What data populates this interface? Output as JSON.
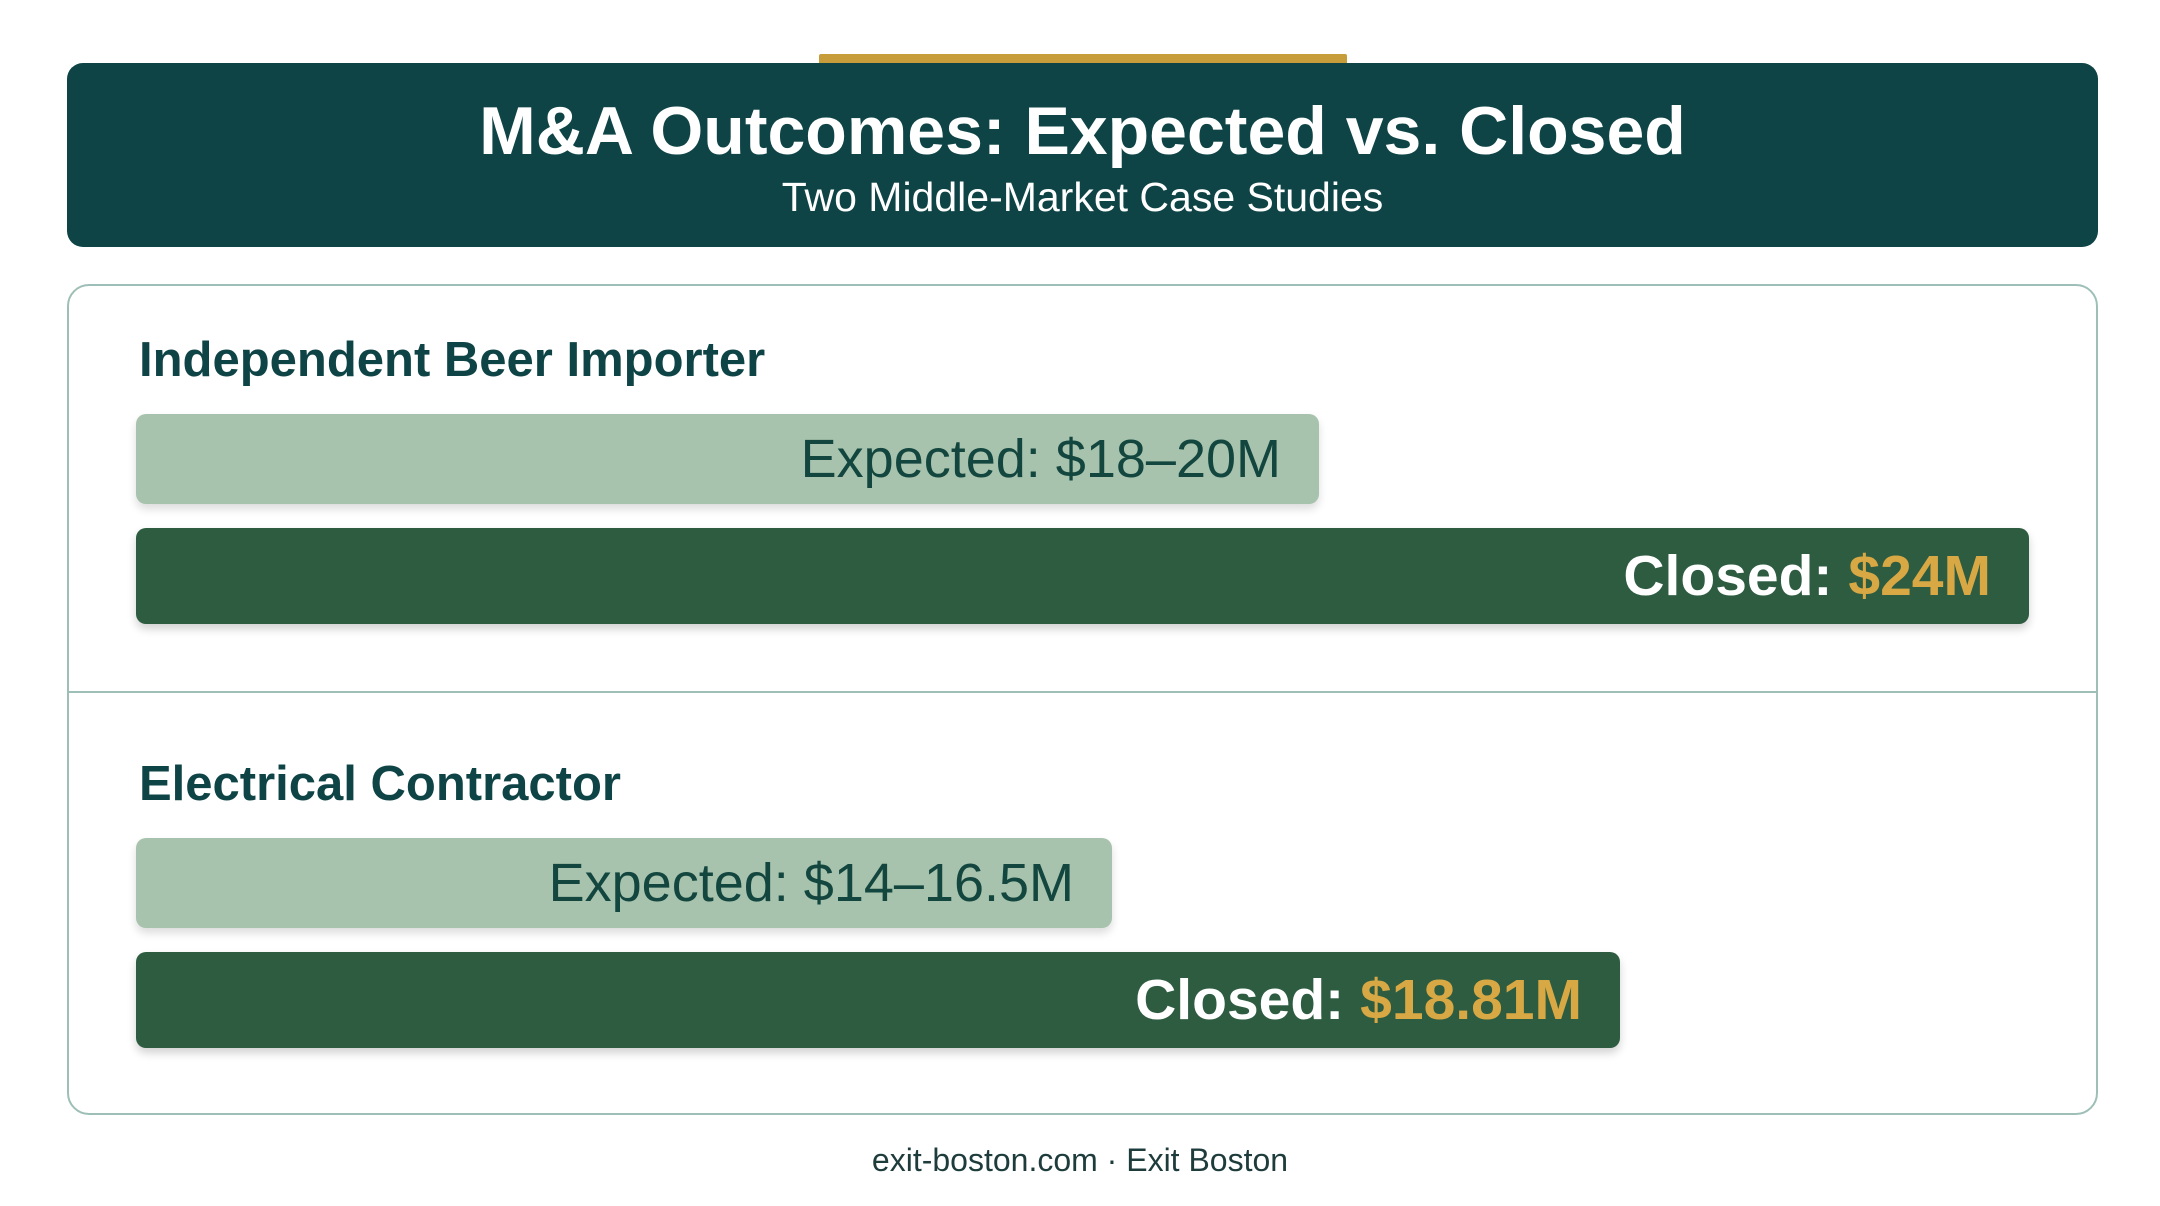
{
  "header": {
    "title": "M&A Outcomes: Expected vs. Closed",
    "subtitle": "Two Middle-Market Case Studies"
  },
  "footer": {
    "text": "exit-boston.com · Exit Boston"
  },
  "colors": {
    "header_bg": "#0f4447",
    "accent": "#c79d3b",
    "expected_bar": "#a7c3ad",
    "closed_bar": "#2d5c40",
    "closed_value": "#d8a845"
  },
  "chart_data": {
    "type": "bar",
    "orientation": "horizontal",
    "unit": "$M",
    "cases": [
      {
        "name": "Independent Beer Importer",
        "expected": {
          "label": "Expected: $18–20M",
          "low": 18,
          "high": 20
        },
        "closed": {
          "label": "Closed:",
          "value_text": "$24M",
          "value": 24
        }
      },
      {
        "name": "Electrical Contractor",
        "expected": {
          "label": "Expected: $14–16.5M",
          "low": 14,
          "high": 16.5
        },
        "closed": {
          "label": "Closed:",
          "value_text": "$18.81M",
          "value": 18.81
        }
      }
    ]
  }
}
